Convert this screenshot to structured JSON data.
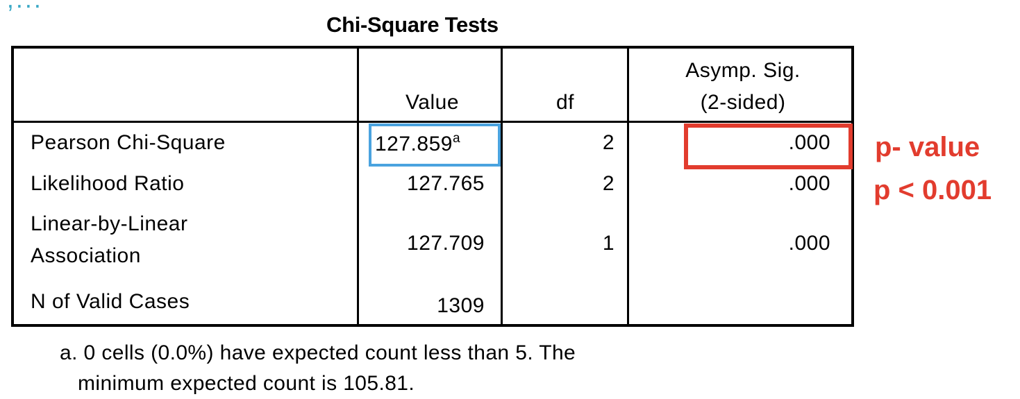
{
  "corner_fragment": "',...",
  "title": "Chi-Square Tests",
  "columns": [
    "",
    "Value",
    "df",
    "Asymp. Sig.\n(2-sided)"
  ],
  "header": {
    "value": "Value",
    "df": "df",
    "sig_line1": "Asymp. Sig.",
    "sig_line2": "(2-sided)"
  },
  "rows": [
    {
      "label": "Pearson Chi-Square",
      "value": "127.859",
      "value_sup": "a",
      "df": "2",
      "sig": ".000"
    },
    {
      "label": "Likelihood Ratio",
      "value": "127.765",
      "df": "2",
      "sig": ".000"
    },
    {
      "label_line1": "Linear-by-Linear",
      "label_line2": "Association",
      "value": "127.709",
      "df": "1",
      "sig": ".000"
    },
    {
      "label": "N of Valid Cases",
      "value": "1309",
      "df": "",
      "sig": ""
    }
  ],
  "footnote": {
    "line1": "a. 0 cells (0.0%) have expected count less than 5. The",
    "line2": "minimum expected count is 105.81."
  },
  "annotations": {
    "p_value_label": "p- value",
    "p_threshold": "p < 0.001",
    "red_color": "#e23c2e",
    "blue_color": "#4aa3df"
  }
}
